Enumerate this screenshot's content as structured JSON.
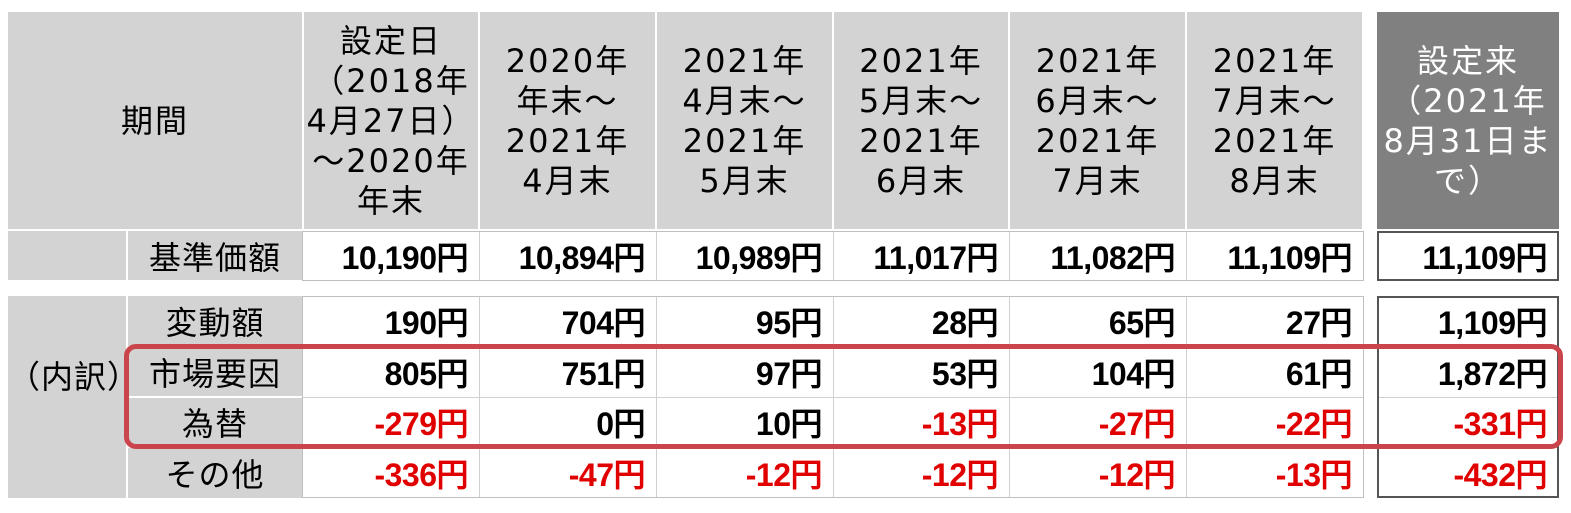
{
  "table": {
    "corner_label": "期間",
    "breakdown_label": "（内訳）",
    "columns": [
      "設定日\n（2018年\n4月27日）\n～2020年\n年末",
      "2020年\n年末～\n2021年\n4月末",
      "2021年\n4月末～\n2021年\n5月末",
      "2021年\n5月末～\n2021年\n6月末",
      "2021年\n6月末～\n2021年\n7月末",
      "2021年\n7月末～\n2021年\n8月末",
      "設定来\n（2021年\n8月31日ま\nで）"
    ],
    "rows": [
      {
        "label": "基準価額",
        "values": [
          "10,190円",
          "10,894円",
          "10,989円",
          "11,017円",
          "11,082円",
          "11,109円",
          "11,109円"
        ],
        "negative": [
          false,
          false,
          false,
          false,
          false,
          false,
          false
        ]
      },
      {
        "label": "変動額",
        "values": [
          "190円",
          "704円",
          "95円",
          "28円",
          "65円",
          "27円",
          "1,109円"
        ],
        "negative": [
          false,
          false,
          false,
          false,
          false,
          false,
          false
        ]
      },
      {
        "label": "市場要因",
        "values": [
          "805円",
          "751円",
          "97円",
          "53円",
          "104円",
          "61円",
          "1,872円"
        ],
        "negative": [
          false,
          false,
          false,
          false,
          false,
          false,
          false
        ]
      },
      {
        "label": "為替",
        "values": [
          "-279円",
          "0円",
          "10円",
          "-13円",
          "-27円",
          "-22円",
          "-331円"
        ],
        "negative": [
          true,
          false,
          false,
          true,
          true,
          true,
          true
        ]
      },
      {
        "label": "その他",
        "values": [
          "-336円",
          "-47円",
          "-12円",
          "-12円",
          "-12円",
          "-13円",
          "-432円"
        ],
        "negative": [
          true,
          true,
          true,
          true,
          true,
          true,
          true
        ]
      }
    ]
  },
  "colors": {
    "header_bg": "#d3d3d3",
    "header_dark_bg": "#808080",
    "negative_text": "#e00000",
    "highlight_border": "#c9444b"
  }
}
